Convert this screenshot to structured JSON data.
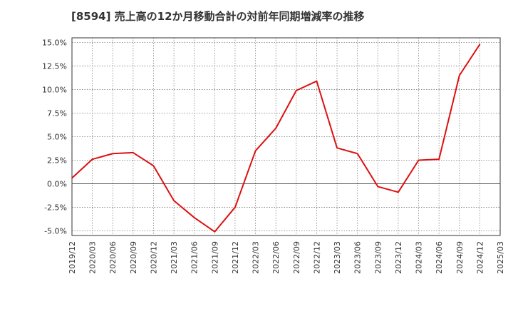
{
  "chart_data": {
    "type": "line",
    "title": "[8594]  売上高の12か月移動合計の対前年同期増減率の推移",
    "xlabel": "",
    "ylabel": "",
    "ylim": [
      -5.5,
      15.5
    ],
    "yticks": [
      -5.0,
      -2.5,
      0.0,
      2.5,
      5.0,
      7.5,
      10.0,
      12.5,
      15.0
    ],
    "ytick_labels": [
      "-5.0%",
      "-2.5%",
      "0.0%",
      "2.5%",
      "5.0%",
      "7.5%",
      "10.0%",
      "12.5%",
      "15.0%"
    ],
    "xtick_labels": [
      "2019/12",
      "2020/03",
      "2020/06",
      "2020/09",
      "2020/12",
      "2021/03",
      "2021/06",
      "2021/09",
      "2021/12",
      "2022/03",
      "2022/06",
      "2022/09",
      "2022/12",
      "2023/03",
      "2023/06",
      "2023/09",
      "2023/12",
      "2024/03",
      "2024/06",
      "2024/09",
      "2024/12",
      "2025/03"
    ],
    "grid": true,
    "series": [
      {
        "name": "増減率",
        "color": "#dd1111",
        "x": [
          "2019/12",
          "2020/03",
          "2020/06",
          "2020/09",
          "2020/12",
          "2021/03",
          "2021/06",
          "2021/09",
          "2021/12",
          "2022/03",
          "2022/06",
          "2022/09",
          "2022/12",
          "2023/03",
          "2023/06",
          "2023/09",
          "2023/12",
          "2024/03",
          "2024/06",
          "2024/09",
          "2024/12"
        ],
        "values": [
          0.6,
          2.6,
          3.2,
          3.3,
          1.9,
          -1.8,
          -3.6,
          -5.1,
          -2.5,
          3.5,
          5.9,
          9.9,
          10.9,
          3.8,
          3.2,
          -0.3,
          -0.9,
          2.5,
          2.6,
          11.5,
          14.8
        ]
      }
    ]
  }
}
